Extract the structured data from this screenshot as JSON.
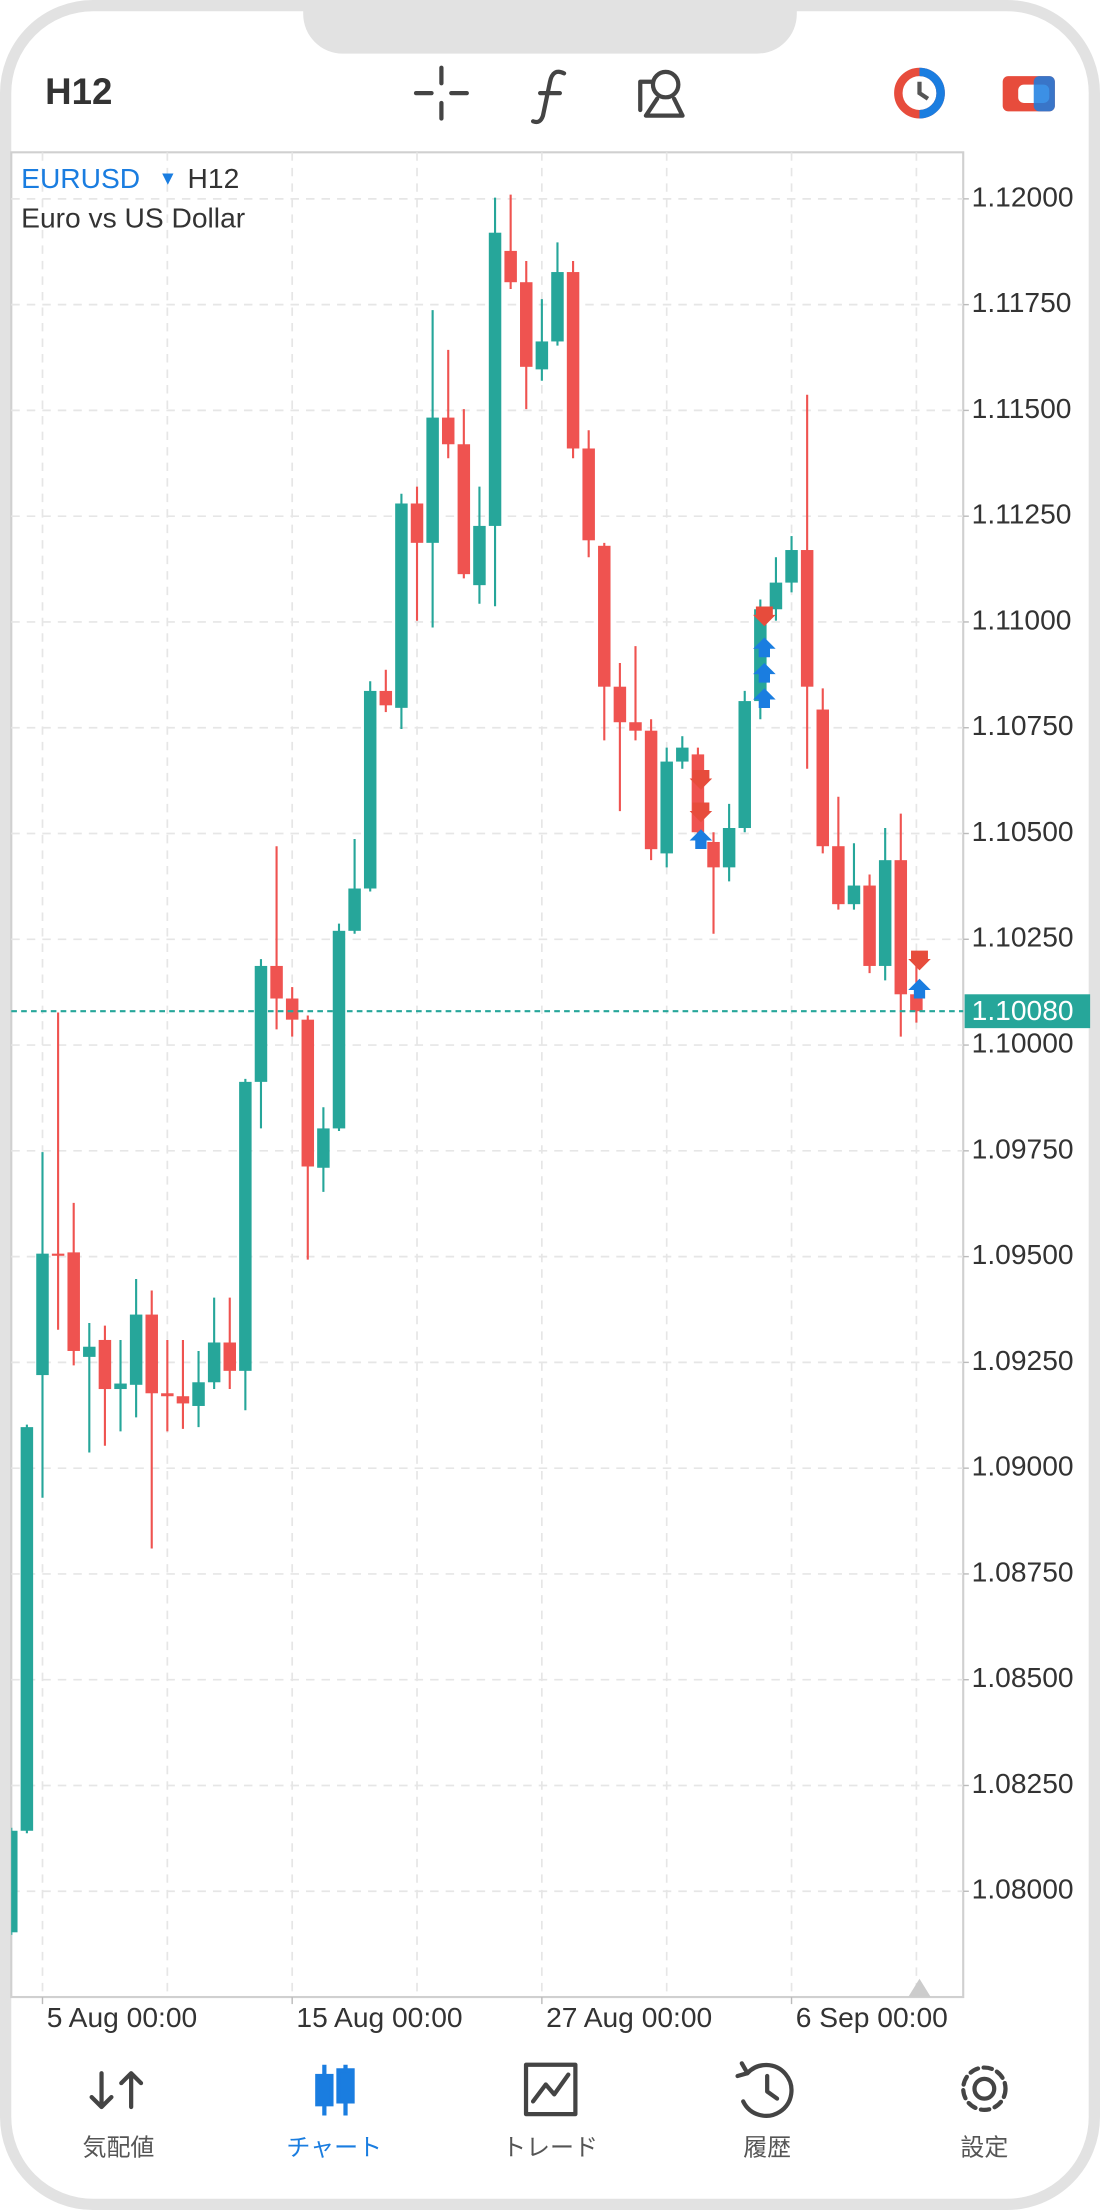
{
  "header": {
    "timeframe": "H12"
  },
  "chart_data": {
    "type": "candlestick",
    "symbol": "EURUSD",
    "timeframe": "H12",
    "description": "Euro vs US Dollar",
    "up_color": "#26a69a",
    "down_color": "#ef5350",
    "grid": true,
    "open": [
      1.07903,
      1.08143,
      1.0922,
      1.09507,
      1.0951,
      1.09263,
      1.09303,
      1.09187,
      1.09197,
      1.09363,
      1.09177,
      1.0917,
      1.09147,
      1.09203,
      1.09297,
      1.0923,
      1.09913,
      1.10187,
      1.1011,
      1.1006,
      1.0971,
      1.09803,
      1.1027,
      1.1037,
      1.10837,
      1.10797,
      1.1128,
      1.11187,
      1.11483,
      1.1142,
      1.11087,
      1.11227,
      1.11877,
      1.11803,
      1.11597,
      1.11663,
      1.11827,
      1.1141,
      1.1118,
      1.10847,
      1.10763,
      1.10743,
      1.10453,
      1.1067,
      1.10687,
      1.1048,
      1.1042,
      1.10513,
      1.10813,
      1.1103,
      1.11093,
      1.1117,
      1.10793,
      1.1047,
      1.10333,
      1.10377,
      1.10187,
      1.10437,
      1.1012
    ],
    "high": [
      1.0815,
      1.09103,
      1.09747,
      1.10077,
      1.09627,
      1.09343,
      1.09337,
      1.09303,
      1.09447,
      1.0942,
      1.09303,
      1.09303,
      1.09277,
      1.09403,
      1.09403,
      1.0992,
      1.10203,
      1.1047,
      1.10137,
      1.1007,
      1.09853,
      1.10287,
      1.10487,
      1.1086,
      1.10887,
      1.11303,
      1.1132,
      1.11737,
      1.11643,
      1.11503,
      1.1132,
      1.12003,
      1.1201,
      1.11853,
      1.11763,
      1.11897,
      1.11853,
      1.11453,
      1.11187,
      1.10903,
      1.10943,
      1.1077,
      1.10703,
      1.1073,
      1.10703,
      1.10503,
      1.1057,
      1.10837,
      1.11053,
      1.11153,
      1.11203,
      1.11537,
      1.10843,
      1.10587,
      1.10477,
      1.10403,
      1.10513,
      1.10547,
      1.10203
    ],
    "low": [
      1.07897,
      1.08137,
      1.0893,
      1.09327,
      1.09243,
      1.09037,
      1.09053,
      1.09087,
      1.0912,
      1.0881,
      1.09087,
      1.09093,
      1.09097,
      1.09187,
      1.09187,
      1.09137,
      1.09803,
      1.10037,
      1.1002,
      1.09493,
      1.09653,
      1.09797,
      1.10263,
      1.10363,
      1.10787,
      1.10747,
      1.11003,
      1.10987,
      1.11387,
      1.11103,
      1.11043,
      1.11037,
      1.11787,
      1.11503,
      1.1157,
      1.11653,
      1.11387,
      1.11153,
      1.1072,
      1.10553,
      1.1072,
      1.10437,
      1.1042,
      1.10653,
      1.10487,
      1.10263,
      1.10387,
      1.10503,
      1.1077,
      1.11003,
      1.1107,
      1.10653,
      1.10453,
      1.1032,
      1.1032,
      1.1017,
      1.10153,
      1.1002,
      1.10053
    ],
    "close": [
      1.08143,
      1.09097,
      1.09507,
      1.09503,
      1.09277,
      1.09287,
      1.09187,
      1.092,
      1.09363,
      1.09177,
      1.0917,
      1.09153,
      1.09203,
      1.09297,
      1.0923,
      1.09913,
      1.10187,
      1.1011,
      1.1006,
      1.09713,
      1.09803,
      1.1027,
      1.1037,
      1.10837,
      1.10803,
      1.1128,
      1.11187,
      1.11483,
      1.1142,
      1.11113,
      1.11227,
      1.1192,
      1.11803,
      1.11603,
      1.11663,
      1.11827,
      1.1141,
      1.11193,
      1.10847,
      1.10763,
      1.10743,
      1.10463,
      1.1067,
      1.10703,
      1.10503,
      1.1042,
      1.10513,
      1.10813,
      1.1103,
      1.11093,
      1.1117,
      1.10847,
      1.1047,
      1.10333,
      1.10377,
      1.10187,
      1.10437,
      1.1012,
      1.1008
    ],
    "xlim": [
      0,
      61
    ],
    "xticks": [
      {
        "value": 2,
        "label": "5 Aug 00:00"
      },
      {
        "value": 18,
        "label": "15 Aug 00:00"
      },
      {
        "value": 34,
        "label": "27 Aug 00:00"
      },
      {
        "value": 50,
        "label": "6 Sep 00:00"
      }
    ],
    "ylim": [
      1.0775,
      1.1211
    ],
    "yticks": [
      {
        "value": 1.12,
        "label": "1.12000"
      },
      {
        "value": 1.1175,
        "label": "1.11750"
      },
      {
        "value": 1.115,
        "label": "1.11500"
      },
      {
        "value": 1.1125,
        "label": "1.11250"
      },
      {
        "value": 1.11,
        "label": "1.11000"
      },
      {
        "value": 1.1075,
        "label": "1.10750"
      },
      {
        "value": 1.105,
        "label": "1.10500"
      },
      {
        "value": 1.1025,
        "label": "1.10250"
      },
      {
        "value": 1.1,
        "label": "1.10000"
      },
      {
        "value": 1.0975,
        "label": "1.09750"
      },
      {
        "value": 1.095,
        "label": "1.09500"
      },
      {
        "value": 1.0925,
        "label": "1.09250"
      },
      {
        "value": 1.09,
        "label": "1.09000"
      },
      {
        "value": 1.0875,
        "label": "1.08750"
      },
      {
        "value": 1.085,
        "label": "1.08500"
      },
      {
        "value": 1.0825,
        "label": "1.08250"
      },
      {
        "value": 1.08,
        "label": "1.08000"
      }
    ],
    "current_price": {
      "value": 1.1008,
      "label": "1.10080"
    }
  },
  "nav": [
    {
      "label": "気配値",
      "active": false
    },
    {
      "label": "チャート",
      "active": true
    },
    {
      "label": "トレード",
      "active": false
    },
    {
      "label": "履歴",
      "active": false
    },
    {
      "label": "設定",
      "active": false
    }
  ]
}
